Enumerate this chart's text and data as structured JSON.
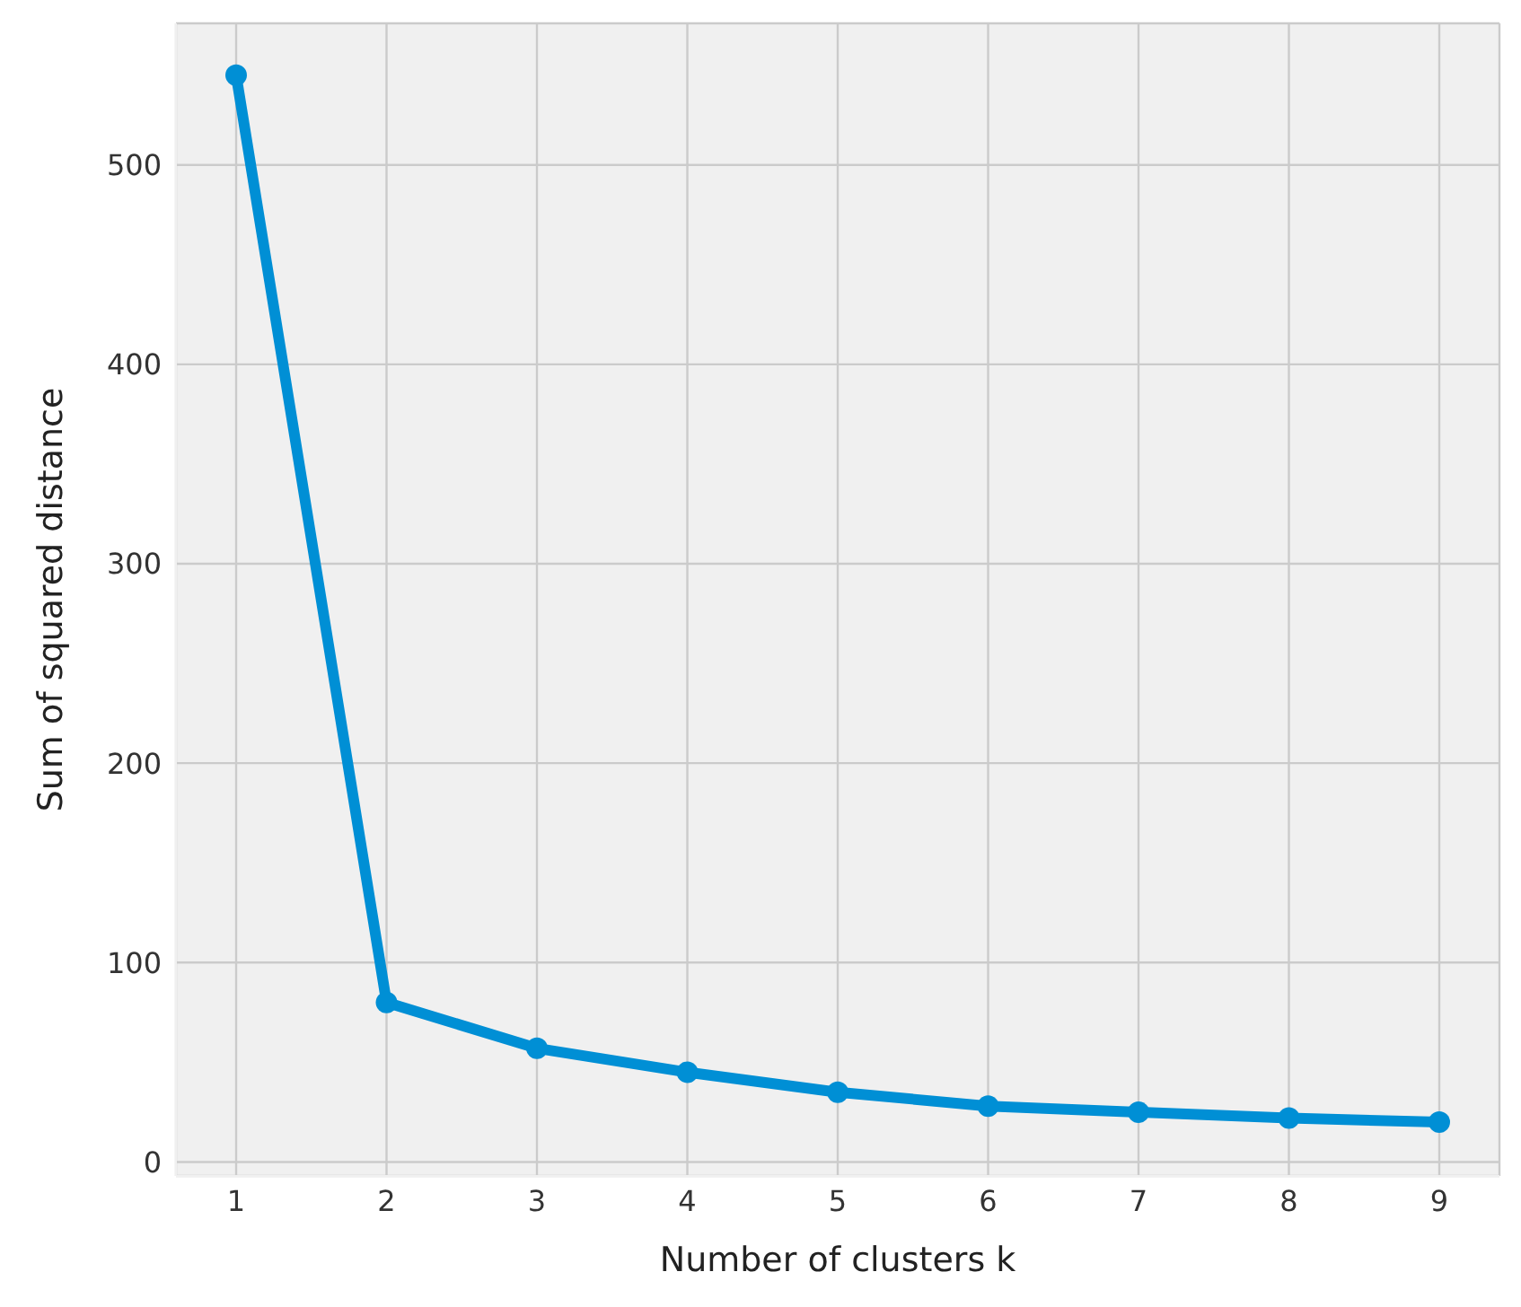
{
  "chart_data": {
    "type": "line",
    "xlabel": "Number of clusters k",
    "ylabel": "Sum of squared distance",
    "x": [
      1,
      2,
      3,
      4,
      5,
      6,
      7,
      8,
      9
    ],
    "series": [
      {
        "color": "#008fd5",
        "values": [
          545,
          80,
          57,
          45,
          35,
          28,
          25,
          22,
          20
        ]
      }
    ],
    "xlim": [
      0.6,
      9.4
    ],
    "xticks": [
      1,
      2,
      3,
      4,
      5,
      6,
      7,
      8,
      9
    ],
    "ylim": [
      -7,
      571
    ],
    "yticks": [
      0,
      100,
      200,
      300,
      400,
      500
    ],
    "grid": true,
    "marker": "circle",
    "line_style": "solid",
    "legend": false
  }
}
